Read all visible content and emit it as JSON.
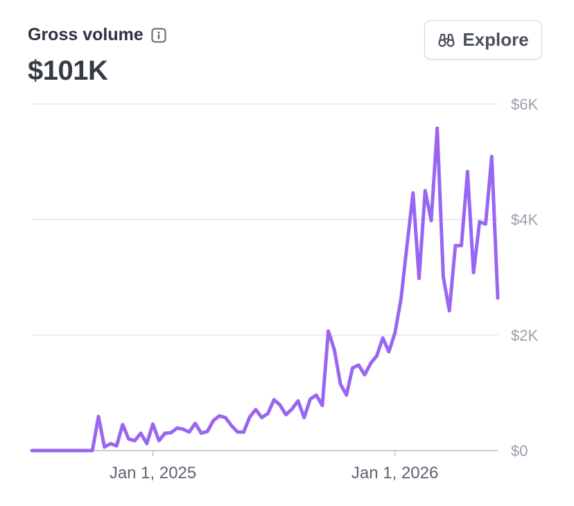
{
  "header": {
    "title": "Gross volume",
    "total": "$101K",
    "explore_label": "Explore"
  },
  "colors": {
    "line": "#9966f2",
    "grid": "#e3e5e9",
    "axis": "#c9ccd3"
  },
  "chart_data": {
    "type": "line",
    "title": "Gross volume",
    "xlabel": "",
    "ylabel": "",
    "ylim": [
      0,
      6000
    ],
    "yticks": [
      0,
      2000,
      4000,
      6000
    ],
    "ytick_labels": [
      "$0",
      "$2K",
      "$4K",
      "$6K"
    ],
    "xticks": [
      {
        "index": 20,
        "label": "Jan 1, 2025"
      },
      {
        "index": 60,
        "label": "Jan 1, 2026"
      }
    ],
    "series": [
      {
        "name": "Gross volume",
        "values": [
          0,
          0,
          0,
          0,
          0,
          0,
          0,
          0,
          0,
          0,
          0,
          590,
          60,
          120,
          80,
          450,
          200,
          170,
          300,
          120,
          460,
          170,
          300,
          310,
          390,
          370,
          320,
          470,
          300,
          330,
          520,
          600,
          570,
          430,
          320,
          320,
          580,
          710,
          570,
          640,
          880,
          790,
          620,
          720,
          860,
          570,
          890,
          960,
          780,
          2070,
          1740,
          1150,
          960,
          1430,
          1480,
          1310,
          1510,
          1640,
          1950,
          1710,
          2030,
          2620,
          3550,
          4460,
          2980,
          4500,
          3980,
          5580,
          3000,
          2420,
          3550,
          3550,
          4830,
          3080,
          3960,
          3920,
          5090,
          2640
        ]
      }
    ]
  }
}
